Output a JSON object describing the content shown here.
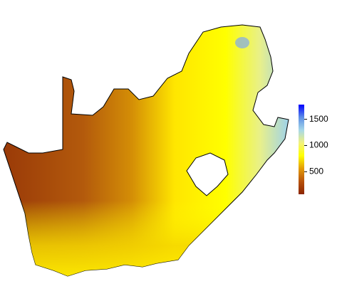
{
  "colorbar": {
    "lim": [
      70,
      1780
    ],
    "ticks": [
      500,
      1000,
      1500
    ],
    "colors": [
      "#8b2500",
      "#b8520a",
      "#e39a06",
      "#ffff00",
      "#f2f27a",
      "#a7d8e8",
      "#5d8fe6",
      "#0000ff"
    ]
  }
}
